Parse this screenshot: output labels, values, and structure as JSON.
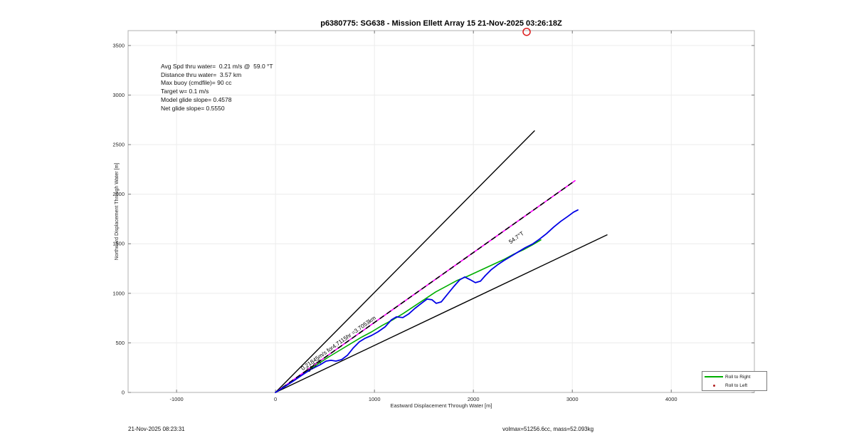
{
  "title": "p6380775: SG638 - Mission Ellett Array 15 21-Nov-2025 03:26:18Z",
  "stats_block": {
    "lines": [
      "Avg Spd thru water=  0.21 m/s @  59.0 °T",
      "Distance thru water=  3.57 km",
      "Max buoy (cmdfile)= 90 cc",
      "Target w= 0.1 m/s",
      "Model glide slope= 0.4578",
      "Net glide slope= 0.5550"
    ]
  },
  "legend": {
    "entries": [
      {
        "label": "Roll to Right",
        "marker": "line",
        "color": "#00ae00"
      },
      {
        "label": "Roll to Left",
        "marker": "dot",
        "color": "#b22222"
      }
    ]
  },
  "footer": {
    "left": "21-Nov-2025 08:23:31",
    "right": "volmax=51256.6cc, mass=52.093kg"
  },
  "chart_data": {
    "type": "line",
    "title": "p6380775: SG638 - Mission Ellett Array 15 21-Nov-2025 03:26:18Z",
    "xlabel": "Eastward Displacement Through Water [m]",
    "ylabel": "Northward Displacement Through Water [m]",
    "xlim": [
      -1490,
      4840
    ],
    "ylim": [
      0,
      3650
    ],
    "xticks": [
      -1000,
      0,
      1000,
      2000,
      3000,
      4000
    ],
    "yticks": [
      0,
      500,
      1000,
      1500,
      2000,
      2500,
      3000,
      3500
    ],
    "grid": true,
    "axis_color": "#b0b0b0",
    "grid_color": "#ececec",
    "tick_color": "#777777",
    "series": [
      {
        "name": "model-bearing-upper",
        "color": "#000000",
        "width": 1.4,
        "dash": null,
        "points": [
          [
            0,
            0
          ],
          [
            2617,
            2639
          ]
        ]
      },
      {
        "name": "model-bearing-lower",
        "color": "#000000",
        "width": 1.4,
        "dash": null,
        "points": [
          [
            0,
            0
          ],
          [
            3351,
            1589
          ]
        ]
      },
      {
        "name": "roll-to-right-track",
        "color": "#00ae00",
        "width": 1.6,
        "dash": null,
        "points": [
          [
            0,
            0
          ],
          [
            108,
            72
          ],
          [
            216,
            144
          ],
          [
            324,
            216
          ],
          [
            431,
            288
          ],
          [
            539,
            359
          ],
          [
            647,
            424
          ],
          [
            755,
            489
          ],
          [
            863,
            554
          ],
          [
            971,
            611
          ],
          [
            1078,
            676
          ],
          [
            1186,
            733
          ],
          [
            1294,
            798
          ],
          [
            1402,
            870
          ],
          [
            1510,
            942
          ],
          [
            1618,
            1014
          ],
          [
            1726,
            1071
          ],
          [
            1833,
            1129
          ],
          [
            1941,
            1172
          ],
          [
            2035,
            1215
          ],
          [
            2128,
            1258
          ],
          [
            2222,
            1301
          ],
          [
            2315,
            1345
          ],
          [
            2409,
            1395
          ],
          [
            2502,
            1438
          ],
          [
            2596,
            1488
          ],
          [
            2682,
            1539
          ]
        ]
      },
      {
        "name": "net-displacement-magenta",
        "color": "#ff00ff",
        "width": 1.6,
        "dash": null,
        "points": [
          [
            0,
            0
          ],
          [
            3027,
            2136
          ]
        ]
      },
      {
        "name": "net-displacement-dash-overlay",
        "color": "#000000",
        "width": 1.6,
        "dash": "6 6",
        "points": [
          [
            0,
            0
          ],
          [
            3027,
            2136
          ]
        ]
      },
      {
        "name": "track-through-water",
        "color": "#0000e6",
        "width": 1.8,
        "dash": null,
        "points": [
          [
            0,
            0
          ],
          [
            93,
            58
          ],
          [
            180,
            115
          ],
          [
            266,
            173
          ],
          [
            352,
            230
          ],
          [
            453,
            280
          ],
          [
            511,
            316
          ],
          [
            561,
            324
          ],
          [
            611,
            316
          ],
          [
            669,
            331
          ],
          [
            726,
            374
          ],
          [
            784,
            446
          ],
          [
            848,
            511
          ],
          [
            906,
            547
          ],
          [
            971,
            575
          ],
          [
            1035,
            611
          ],
          [
            1107,
            661
          ],
          [
            1172,
            733
          ],
          [
            1222,
            762
          ],
          [
            1287,
            755
          ],
          [
            1345,
            791
          ],
          [
            1409,
            848
          ],
          [
            1474,
            899
          ],
          [
            1532,
            942
          ],
          [
            1582,
            935
          ],
          [
            1625,
            899
          ],
          [
            1675,
            913
          ],
          [
            1733,
            985
          ],
          [
            1798,
            1064
          ],
          [
            1862,
            1136
          ],
          [
            1913,
            1165
          ],
          [
            1970,
            1136
          ],
          [
            2020,
            1107
          ],
          [
            2071,
            1122
          ],
          [
            2121,
            1179
          ],
          [
            2179,
            1237
          ],
          [
            2243,
            1287
          ],
          [
            2308,
            1330
          ],
          [
            2380,
            1373
          ],
          [
            2452,
            1417
          ],
          [
            2524,
            1460
          ],
          [
            2596,
            1496
          ],
          [
            2668,
            1546
          ],
          [
            2740,
            1603
          ],
          [
            2811,
            1668
          ],
          [
            2883,
            1726
          ],
          [
            2955,
            1776
          ],
          [
            3013,
            1819
          ],
          [
            3056,
            1841
          ]
        ]
      }
    ],
    "annotations": [
      {
        "name": "speed-distance-label",
        "text": "0.21845m/s for4.7115hr =3.7053km",
        "e": 647,
        "n": 482,
        "rotation": -35.2,
        "size": 8
      },
      {
        "name": "bearing-label-origin",
        "text": "54.7°T",
        "e": 403,
        "n": 252,
        "rotation": -35.2,
        "size": 8
      },
      {
        "name": "bearing-label-mid",
        "text": "54.7°T",
        "e": 2445,
        "n": 1546,
        "rotation": -35.2,
        "size": 8
      }
    ],
    "highlight_marker": {
      "e": 2538,
      "n": 3638,
      "radius": 5,
      "color": "#dd1c1c"
    }
  }
}
